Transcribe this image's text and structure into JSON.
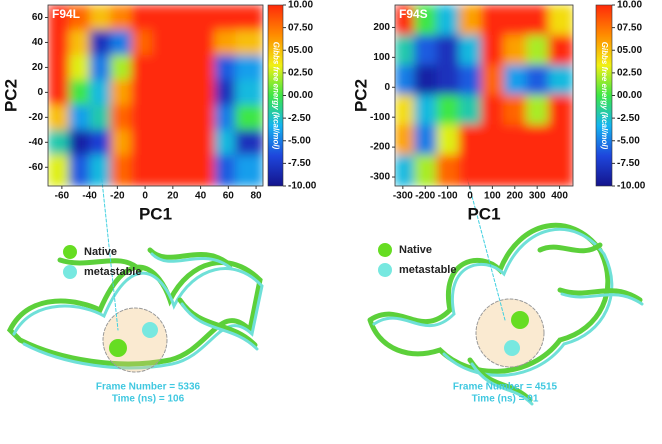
{
  "chart_data": [
    {
      "type": "heatmap",
      "title": "F94L",
      "xlabel": "PC1",
      "ylabel": "PC2",
      "x_edges": [
        -70,
        -55,
        -40,
        -25,
        -10,
        5,
        20,
        35,
        50,
        65,
        85
      ],
      "y_edges": [
        70,
        50,
        30,
        10,
        -10,
        -30,
        -50,
        -75
      ],
      "z": [
        [
          10,
          8,
          5,
          7,
          10,
          10,
          10,
          10,
          10,
          10
        ],
        [
          10,
          5,
          -8,
          -5,
          8,
          10,
          10,
          10,
          6,
          5
        ],
        [
          10,
          3,
          -5,
          2,
          10,
          10,
          10,
          10,
          -6,
          -4
        ],
        [
          10,
          0,
          -3,
          6,
          10,
          10,
          10,
          10,
          -8,
          -3
        ],
        [
          5,
          -4,
          -2,
          8,
          10,
          10,
          10,
          10,
          -5,
          0
        ],
        [
          -2,
          -9,
          -7,
          6,
          10,
          10,
          10,
          10,
          -3,
          -8
        ],
        [
          3,
          -6,
          -3,
          8,
          10,
          10,
          10,
          10,
          -6,
          -4
        ]
      ],
      "xlim": [
        -70,
        85
      ],
      "ylim": [
        -75,
        70
      ],
      "xticks": [
        -60,
        -40,
        -20,
        0,
        20,
        40,
        60,
        80
      ],
      "yticks": [
        60,
        40,
        20,
        0,
        -20,
        -40,
        -60
      ],
      "clim": [
        -10,
        10
      ],
      "cticks": [
        {
          "value": 10,
          "label": "10.00"
        },
        {
          "value": 7.5,
          "label": "07.50"
        },
        {
          "value": 5,
          "label": "05.00"
        },
        {
          "value": 2.5,
          "label": "02.50"
        },
        {
          "value": 0,
          "label": "00.00"
        },
        {
          "value": -2.5,
          "label": "-2.50"
        },
        {
          "value": -5,
          "label": "-5.00"
        },
        {
          "value": -7.5,
          "label": "-7.50"
        },
        {
          "value": -10,
          "label": "-10.00"
        }
      ],
      "colorbar_label": "Gibbs free energy (kcal/mol)",
      "colormap": [
        "#14148c",
        "#1e46dc",
        "#14b4f0",
        "#3ce646",
        "#f0f014",
        "#ff8c00",
        "#ff2a0a"
      ]
    },
    {
      "type": "heatmap",
      "title": "F94S",
      "xlabel": "PC1",
      "ylabel": "PC2",
      "x_edges": [
        -335,
        -250,
        -150,
        -50,
        50,
        150,
        250,
        350,
        460
      ],
      "y_edges": [
        275,
        175,
        75,
        -25,
        -125,
        -225,
        -330
      ],
      "z": [
        [
          10,
          0,
          -3,
          6,
          10,
          10,
          10,
          4
        ],
        [
          -2,
          -6,
          -8,
          -3,
          10,
          6,
          2,
          10
        ],
        [
          -5,
          -9,
          -8,
          -6,
          8,
          -4,
          -6,
          -3
        ],
        [
          4,
          -3,
          0,
          -2,
          10,
          8,
          2,
          10
        ],
        [
          6,
          -5,
          3,
          10,
          10,
          10,
          10,
          10
        ],
        [
          -3,
          2,
          8,
          10,
          10,
          10,
          10,
          10
        ]
      ],
      "xlim": [
        -335,
        460
      ],
      "ylim": [
        -330,
        275
      ],
      "xticks": [
        -300,
        -200,
        -100,
        0,
        100,
        200,
        300,
        400
      ],
      "yticks": [
        200,
        100,
        0,
        -100,
        -200,
        -300
      ],
      "clim": [
        -10,
        10
      ],
      "cticks": [
        {
          "value": 10,
          "label": "10.00"
        },
        {
          "value": 7.5,
          "label": "07.50"
        },
        {
          "value": 5,
          "label": "05.00"
        },
        {
          "value": 2.5,
          "label": "02.50"
        },
        {
          "value": 0,
          "label": "00.00"
        },
        {
          "value": -2.5,
          "label": "-2.50"
        },
        {
          "value": -5,
          "label": "-5.00"
        },
        {
          "value": -7.5,
          "label": "-7.50"
        },
        {
          "value": -10,
          "label": "-10.00"
        }
      ],
      "colorbar_label": "Gibbs free energy (kcal/mol)",
      "colormap": [
        "#14148c",
        "#1e46dc",
        "#14b4f0",
        "#3ce646",
        "#f0f014",
        "#ff8c00",
        "#ff2a0a"
      ]
    }
  ],
  "structures": [
    {
      "legend": [
        {
          "name": "Native",
          "color": "#66dd22"
        },
        {
          "name": "metastable",
          "color": "#77e8e0"
        }
      ],
      "frame": "Frame Number = 5336",
      "time": "Time (ns) = 106"
    },
    {
      "legend": [
        {
          "name": "Native",
          "color": "#66dd22"
        },
        {
          "name": "metastable",
          "color": "#77e8e0"
        }
      ],
      "frame": "Frame Number = 4515",
      "time": "Time (ns) = 91"
    }
  ]
}
